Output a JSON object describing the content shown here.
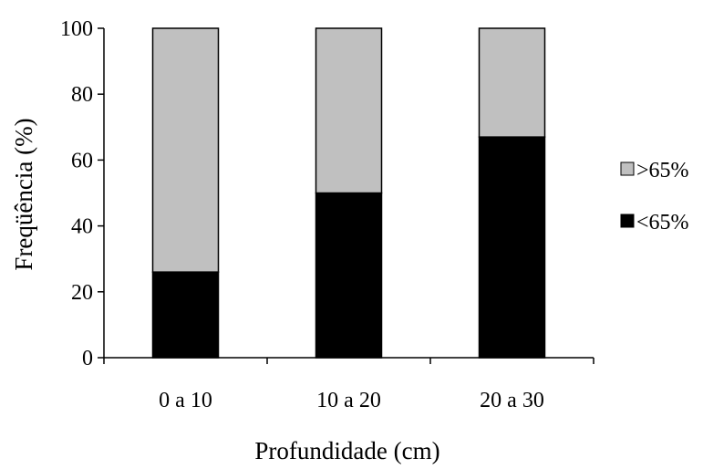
{
  "chart_data": {
    "type": "bar",
    "stacked": true,
    "title": "",
    "xlabel": "Profundidade (cm)",
    "ylabel": "Freqüência (%)",
    "ylim": [
      0,
      100
    ],
    "yticks": [
      "0",
      "20",
      "40",
      "60",
      "80",
      "100"
    ],
    "categories": [
      "0 a 10",
      "10 a 20",
      "20 a 30"
    ],
    "series": [
      {
        "name": "<65%",
        "values": [
          26,
          50,
          67
        ],
        "color": "#000000"
      },
      {
        "name": ">65%",
        "values": [
          74,
          50,
          33
        ],
        "color": "#c0c0c0"
      }
    ],
    "legend": {
      "position": "right",
      "order": [
        ">65%",
        "<65%"
      ]
    },
    "grid": false
  }
}
